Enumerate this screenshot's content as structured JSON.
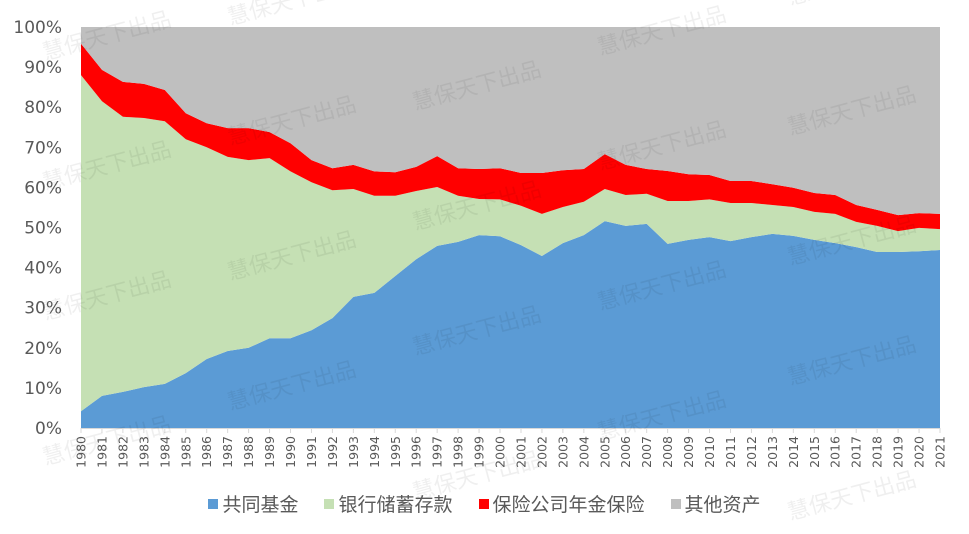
{
  "chart_data": {
    "type": "area",
    "stacked": true,
    "normalized_percent": true,
    "title": "",
    "xlabel": "",
    "ylabel": "",
    "ylim": [
      0,
      100
    ],
    "yticks": [
      "0%",
      "10%",
      "20%",
      "30%",
      "40%",
      "50%",
      "60%",
      "70%",
      "80%",
      "90%",
      "100%"
    ],
    "categories": [
      "1980",
      "1981",
      "1982",
      "1983",
      "1984",
      "1985",
      "1986",
      "1987",
      "1988",
      "1989",
      "1990",
      "1991",
      "1992",
      "1993",
      "1994",
      "1995",
      "1996",
      "1997",
      "1998",
      "1999",
      "2000",
      "2001",
      "2002",
      "2003",
      "2004",
      "2005",
      "2006",
      "2007",
      "2008",
      "2009",
      "2010",
      "2011",
      "2012",
      "2013",
      "2014",
      "2015",
      "2016",
      "2017",
      "2018",
      "2019",
      "2020",
      "2021"
    ],
    "series": [
      {
        "name": "共同基金",
        "color": "#5B9BD5",
        "values": [
          4.2,
          8.0,
          9.0,
          10.2,
          11.0,
          13.7,
          17.2,
          19.2,
          20.0,
          22.4,
          22.4,
          24.4,
          27.4,
          32.7,
          33.7,
          37.9,
          42.1,
          45.4,
          46.4,
          48.1,
          47.8,
          45.6,
          42.9,
          46.1,
          48.1,
          51.6,
          50.4,
          50.9,
          45.9,
          46.9,
          47.6,
          46.6,
          47.6,
          48.4,
          47.9,
          46.9,
          46.1,
          45.1,
          43.9,
          43.9,
          44.1,
          44.4
        ]
      },
      {
        "name": "银行储蓄存款",
        "color": "#C5E0B4",
        "values": [
          83.8,
          73.5,
          68.6,
          67.1,
          65.5,
          58.3,
          52.8,
          48.4,
          46.8,
          44.9,
          41.6,
          36.9,
          31.9,
          26.9,
          24.2,
          20.0,
          17.0,
          14.7,
          11.5,
          9.0,
          9.2,
          9.8,
          10.5,
          9.0,
          8.3,
          8.0,
          7.7,
          7.5,
          10.7,
          9.7,
          9.4,
          9.5,
          8.5,
          7.2,
          7.2,
          7.0,
          7.3,
          6.3,
          6.5,
          5.2,
          5.8,
          5.2
        ]
      },
      {
        "name": "保险公司年金保险",
        "color": "#FF0000",
        "values": [
          7.8,
          7.8,
          8.7,
          8.5,
          7.8,
          6.5,
          6.0,
          7.2,
          8.0,
          6.5,
          7.0,
          5.5,
          5.5,
          6.0,
          6.1,
          5.9,
          6.0,
          7.7,
          6.9,
          7.5,
          7.8,
          8.2,
          10.2,
          9.2,
          8.2,
          8.7,
          7.5,
          6.2,
          7.5,
          6.7,
          6.1,
          5.5,
          5.5,
          5.2,
          4.8,
          4.7,
          4.7,
          4.2,
          4.0,
          4.0,
          3.7,
          3.8
        ]
      },
      {
        "name": "其他资产",
        "color": "#BFBFBF",
        "values": [
          4.2,
          10.7,
          13.7,
          14.2,
          15.7,
          21.5,
          24.0,
          25.2,
          25.2,
          26.2,
          29.0,
          33.2,
          35.2,
          34.4,
          36.0,
          36.2,
          34.9,
          32.2,
          35.2,
          35.4,
          35.2,
          36.4,
          36.4,
          35.7,
          35.4,
          31.7,
          34.4,
          35.4,
          35.9,
          36.7,
          36.9,
          38.4,
          38.4,
          39.2,
          40.1,
          41.4,
          41.9,
          44.4,
          45.6,
          46.9,
          46.4,
          46.6
        ]
      }
    ],
    "legend_position": "bottom",
    "grid": false
  },
  "legend": {
    "items": [
      {
        "label": "共同基金",
        "color": "#5B9BD5"
      },
      {
        "label": "银行储蓄存款",
        "color": "#C5E0B4"
      },
      {
        "label": "保险公司年金保险",
        "color": "#FF0000"
      },
      {
        "label": "其他资产",
        "color": "#BFBFBF"
      }
    ]
  },
  "watermark": {
    "text": "慧保天下出品"
  }
}
